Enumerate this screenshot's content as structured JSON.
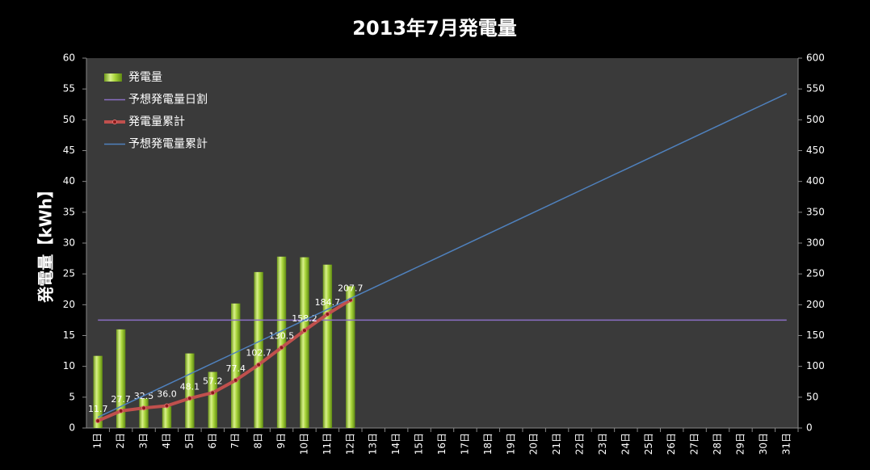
{
  "chart_data": {
    "type": "combo",
    "title": "2013年7月発電量",
    "y_label": "発電量【kWh】",
    "categories": [
      "1日",
      "2日",
      "3日",
      "4日",
      "5日",
      "6日",
      "7日",
      "8日",
      "9日",
      "10日",
      "11日",
      "12日",
      "13日",
      "14日",
      "15日",
      "16日",
      "17日",
      "18日",
      "19日",
      "20日",
      "21日",
      "22日",
      "23日",
      "24日",
      "25日",
      "26日",
      "27日",
      "28日",
      "29日",
      "30日",
      "31日"
    ],
    "ylim": [
      0,
      60
    ],
    "yticks": [
      0,
      5,
      10,
      15,
      20,
      25,
      30,
      35,
      40,
      45,
      50,
      55,
      60
    ],
    "y2lim": [
      0,
      600
    ],
    "y2ticks": [
      0,
      50,
      100,
      150,
      200,
      250,
      300,
      350,
      400,
      450,
      500,
      550,
      600
    ],
    "legend": "upper left",
    "grid": false,
    "series": [
      {
        "name": "発電量",
        "type": "bar",
        "color": "#9acd32",
        "axis": "y",
        "values": [
          11.7,
          16.0,
          4.8,
          3.5,
          12.1,
          9.1,
          20.2,
          25.3,
          27.8,
          27.7,
          26.5,
          23.0,
          null,
          null,
          null,
          null,
          null,
          null,
          null,
          null,
          null,
          null,
          null,
          null,
          null,
          null,
          null,
          null,
          null,
          null,
          null
        ]
      },
      {
        "name": "予想発電量日割",
        "type": "line",
        "color": "#8a6fc4",
        "axis": "y",
        "values": [
          17.5,
          17.5,
          17.5,
          17.5,
          17.5,
          17.5,
          17.5,
          17.5,
          17.5,
          17.5,
          17.5,
          17.5,
          17.5,
          17.5,
          17.5,
          17.5,
          17.5,
          17.5,
          17.5,
          17.5,
          17.5,
          17.5,
          17.5,
          17.5,
          17.5,
          17.5,
          17.5,
          17.5,
          17.5,
          17.5,
          17.5
        ]
      },
      {
        "name": "発電量累計",
        "type": "line",
        "color": "#c0504d",
        "axis": "y2",
        "markers": true,
        "values": [
          11.7,
          27.7,
          32.5,
          36.0,
          48.1,
          57.2,
          77.4,
          102.7,
          130.5,
          158.2,
          184.7,
          207.7,
          null,
          null,
          null,
          null,
          null,
          null,
          null,
          null,
          null,
          null,
          null,
          null,
          null,
          null,
          null,
          null,
          null,
          null,
          null
        ],
        "value_labels": [
          "11.7",
          "27.7",
          "32.5",
          "36.0",
          "48.1",
          "57.2",
          "77.4",
          "102.7",
          "130.5",
          "158.2",
          "184.7",
          "207.7",
          null,
          null,
          null,
          null,
          null,
          null,
          null,
          null,
          null,
          null,
          null,
          null,
          null,
          null,
          null,
          null,
          null,
          null,
          null
        ]
      },
      {
        "name": "予想発電量累計",
        "type": "line",
        "color": "#4f81bd",
        "axis": "y2",
        "values": [
          17.5,
          35,
          52.5,
          70,
          87.5,
          105,
          122.5,
          140,
          157.5,
          175,
          192.5,
          210,
          227.5,
          245,
          262.5,
          280,
          297.5,
          315,
          332.5,
          350,
          367.5,
          385,
          402.5,
          420,
          437.5,
          455,
          472.5,
          490,
          507.5,
          525,
          542.5
        ]
      }
    ]
  }
}
